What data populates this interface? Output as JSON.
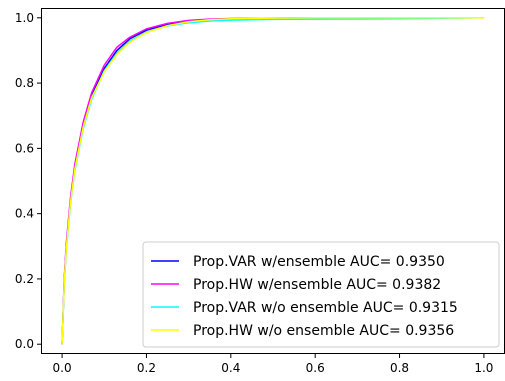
{
  "chart_data": {
    "type": "line",
    "title": "",
    "xlabel": "",
    "ylabel": "",
    "xlim": [
      -0.05,
      1.05
    ],
    "ylim": [
      -0.03,
      1.03
    ],
    "x_ticks": [
      0.0,
      0.2,
      0.4,
      0.6,
      0.8,
      1.0
    ],
    "y_ticks": [
      0.0,
      0.2,
      0.4,
      0.6,
      0.8,
      1.0
    ],
    "x_tick_labels": [
      "0.0",
      "0.2",
      "0.4",
      "0.6",
      "0.8",
      "1.0"
    ],
    "y_tick_labels": [
      "0.0",
      "0.2",
      "0.4",
      "0.6",
      "0.8",
      "1.0"
    ],
    "grid": false,
    "legend_position": "lower-right",
    "series": [
      {
        "name": "Prop.VAR w/ensemble AUC= 0.9350",
        "color": "#0000ff",
        "x": [
          0.0,
          0.005,
          0.01,
          0.02,
          0.03,
          0.05,
          0.07,
          0.1,
          0.13,
          0.16,
          0.2,
          0.25,
          0.3,
          0.35,
          0.4,
          0.5,
          0.6,
          0.8,
          1.0
        ],
        "y": [
          0.0,
          0.19,
          0.3,
          0.44,
          0.54,
          0.67,
          0.76,
          0.845,
          0.9,
          0.935,
          0.962,
          0.98,
          0.99,
          0.995,
          0.997,
          0.998,
          0.999,
          1.0,
          1.0
        ]
      },
      {
        "name": "Prop.HW w/ensemble AUC= 0.9382",
        "color": "#ff00ff",
        "x": [
          0.0,
          0.005,
          0.01,
          0.02,
          0.03,
          0.05,
          0.07,
          0.1,
          0.13,
          0.16,
          0.2,
          0.25,
          0.3,
          0.35,
          0.4,
          0.5,
          0.6,
          0.8,
          1.0
        ],
        "y": [
          0.0,
          0.2,
          0.31,
          0.45,
          0.55,
          0.68,
          0.77,
          0.855,
          0.91,
          0.94,
          0.966,
          0.983,
          0.992,
          0.996,
          0.998,
          0.999,
          1.0,
          1.0,
          1.0
        ]
      },
      {
        "name": "Prop.VAR w/o ensemble AUC= 0.9315",
        "color": "#00ffff",
        "x": [
          0.0,
          0.005,
          0.01,
          0.02,
          0.03,
          0.05,
          0.07,
          0.1,
          0.13,
          0.16,
          0.2,
          0.25,
          0.3,
          0.35,
          0.4,
          0.5,
          0.6,
          0.8,
          1.0
        ],
        "y": [
          0.0,
          0.18,
          0.29,
          0.43,
          0.53,
          0.66,
          0.75,
          0.838,
          0.892,
          0.928,
          0.956,
          0.975,
          0.985,
          0.99,
          0.993,
          0.995,
          0.996,
          0.997,
          1.0
        ]
      },
      {
        "name": "Prop.HW w/o ensemble AUC= 0.9356",
        "color": "#ffff00",
        "x": [
          0.0,
          0.005,
          0.01,
          0.02,
          0.03,
          0.05,
          0.07,
          0.1,
          0.13,
          0.16,
          0.2,
          0.25,
          0.3,
          0.35,
          0.4,
          0.5,
          0.6,
          0.8,
          1.0
        ],
        "y": [
          0.0,
          0.185,
          0.295,
          0.435,
          0.535,
          0.665,
          0.755,
          0.835,
          0.888,
          0.925,
          0.955,
          0.976,
          0.988,
          0.994,
          0.997,
          0.999,
          1.0,
          1.0,
          1.0
        ]
      }
    ]
  }
}
